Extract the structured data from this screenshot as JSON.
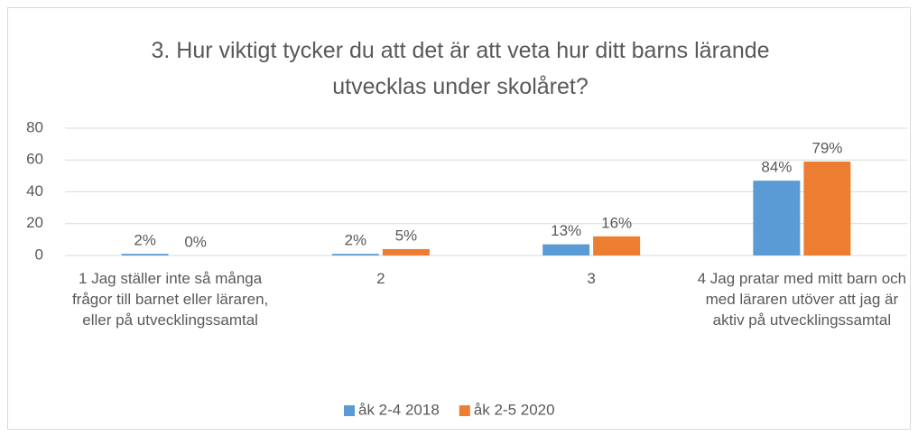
{
  "chart_data": {
    "type": "bar",
    "title": "3. Hur viktigt tycker du att det är att veta hur ditt barns lärande utvecklas under skolåret?",
    "categories": [
      "1  Jag ställer inte så många frågor till barnet eller läraren, eller på utvecklingssamtal",
      "2",
      "3",
      "4  Jag pratar med mitt barn och med läraren utöver att jag är aktiv på utvecklingssamtal"
    ],
    "series": [
      {
        "name": "åk 2-4 2018",
        "color": "#5b9bd5",
        "values": [
          1,
          1,
          7,
          47
        ],
        "value_labels": [
          "2%",
          "2%",
          "13%",
          "84%"
        ]
      },
      {
        "name": "åk 2-5 2020",
        "color": "#ed7d31",
        "values": [
          0,
          4,
          12,
          59
        ],
        "value_labels": [
          "0%",
          "5%",
          "16%",
          "79%"
        ]
      }
    ],
    "ylim": [
      0,
      80
    ],
    "yticks": [
      0,
      20,
      40,
      60,
      80
    ],
    "grid": true,
    "legend": "bottom"
  }
}
